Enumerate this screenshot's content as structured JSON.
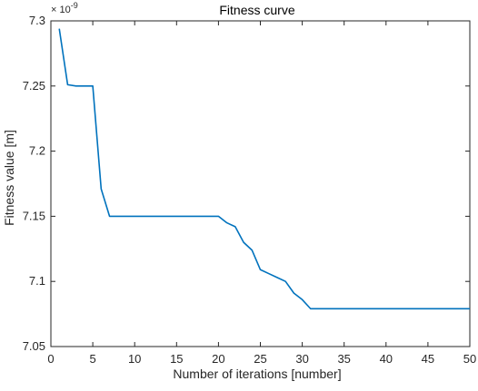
{
  "chart_data": {
    "type": "line",
    "title": "Fitness curve",
    "xlabel": "Number of iterations [number]",
    "ylabel": "Fitness value [m]",
    "y_exponent_label": "× 10",
    "y_exponent_power": "-9",
    "xlim": [
      0,
      50
    ],
    "ylim": [
      7.05,
      7.3
    ],
    "xticks": [
      0,
      5,
      10,
      15,
      20,
      25,
      30,
      35,
      40,
      45,
      50
    ],
    "yticks": [
      7.05,
      7.1,
      7.15,
      7.2,
      7.25,
      7.3
    ],
    "xtick_labels": [
      "0",
      "5",
      "10",
      "15",
      "20",
      "25",
      "30",
      "35",
      "40",
      "45",
      "50"
    ],
    "ytick_labels": [
      "7.05",
      "7.1",
      "7.15",
      "7.2",
      "7.25",
      "7.3"
    ],
    "grid": false,
    "series": [
      {
        "color": "#0072BD",
        "x": [
          1,
          2,
          3,
          4,
          5,
          6,
          7,
          8,
          9,
          10,
          11,
          12,
          13,
          14,
          15,
          16,
          17,
          18,
          19,
          20,
          21,
          22,
          23,
          24,
          25,
          26,
          27,
          28,
          29,
          30,
          31,
          32,
          33,
          34,
          35,
          36,
          37,
          38,
          39,
          40,
          41,
          42,
          43,
          44,
          45,
          46,
          47,
          48,
          49,
          50
        ],
        "values": [
          7.294,
          7.251,
          7.25,
          7.25,
          7.25,
          7.171,
          7.15,
          7.15,
          7.15,
          7.15,
          7.15,
          7.15,
          7.15,
          7.15,
          7.15,
          7.15,
          7.15,
          7.15,
          7.15,
          7.15,
          7.145,
          7.142,
          7.13,
          7.124,
          7.109,
          7.106,
          7.103,
          7.1,
          7.091,
          7.086,
          7.079,
          7.079,
          7.079,
          7.079,
          7.079,
          7.079,
          7.079,
          7.079,
          7.079,
          7.079,
          7.079,
          7.079,
          7.079,
          7.079,
          7.079,
          7.079,
          7.079,
          7.079,
          7.079,
          7.079
        ]
      }
    ]
  }
}
